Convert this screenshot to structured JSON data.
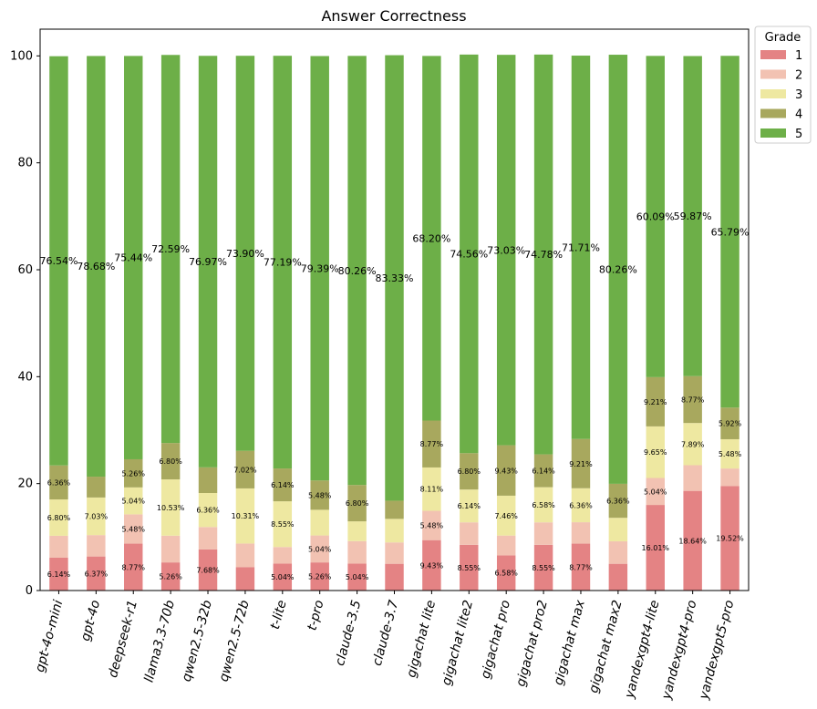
{
  "chart_data": {
    "type": "bar",
    "stacked": true,
    "title": "Answer Correctness",
    "xlabel": "",
    "ylabel": "",
    "ylim": [
      0,
      105
    ],
    "yticks": [
      0,
      20,
      40,
      60,
      80,
      100
    ],
    "grid": false,
    "legend": {
      "title": "Grade",
      "placement": "outside-top-right"
    },
    "categories": [
      "gpt-4o-mini",
      "gpt-4o",
      "deepseek-r1",
      "llama3.3-70b",
      "qwen2.5-32b",
      "qwen2.5-72b",
      "t-lite",
      "t-pro",
      "claude-3.5",
      "claude-3.7",
      "gigachat lite",
      "gigachat lite2",
      "gigachat pro",
      "gigachat pro2",
      "gigachat max",
      "gigachat max2",
      "yandexgpt4-lite",
      "yandexgpt4-pro",
      "yandexgpt5-pro"
    ],
    "series": [
      {
        "name": "1",
        "color": "#e48384",
        "values": [
          6.14,
          6.37,
          8.77,
          5.26,
          7.68,
          4.39,
          5.04,
          5.26,
          5.04,
          5.0,
          9.43,
          8.55,
          6.58,
          8.55,
          8.77,
          5.0,
          16.01,
          18.64,
          19.52
        ],
        "labels": [
          "6.14%",
          "6.37%",
          "8.77%",
          "5.26%",
          "7.68%",
          "",
          "5.04%",
          "5.26%",
          "5.04%",
          "",
          "9.43%",
          "8.55%",
          "6.58%",
          "8.55%",
          "8.77%",
          "",
          "16.01%",
          "18.64%",
          "19.52%"
        ]
      },
      {
        "name": "2",
        "color": "#f2c2b2",
        "values": [
          4.1,
          4.0,
          5.48,
          5.0,
          4.2,
          4.4,
          3.1,
          5.04,
          4.2,
          4.0,
          5.48,
          4.2,
          3.7,
          4.2,
          4.0,
          4.2,
          5.04,
          4.8,
          3.3
        ],
        "labels": [
          "",
          "",
          "5.48%",
          "",
          "",
          "",
          "",
          "5.04%",
          "",
          "",
          "5.48%",
          "",
          "",
          "",
          "",
          "",
          "5.04%",
          "",
          ""
        ]
      },
      {
        "name": "3",
        "color": "#eee8a1",
        "values": [
          6.8,
          7.03,
          5.04,
          10.53,
          6.36,
          10.31,
          8.55,
          4.8,
          3.7,
          4.4,
          8.11,
          6.14,
          7.46,
          6.58,
          6.36,
          4.4,
          9.65,
          7.89,
          5.48
        ],
        "labels": [
          "6.80%",
          "7.03%",
          "5.04%",
          "10.53%",
          "6.36%",
          "10.31%",
          "8.55%",
          "",
          "",
          "",
          "8.11%",
          "6.14%",
          "7.46%",
          "6.58%",
          "6.36%",
          "",
          "9.65%",
          "7.89%",
          "5.48%"
        ]
      },
      {
        "name": "4",
        "color": "#a8a85e",
        "values": [
          6.36,
          3.9,
          5.26,
          6.8,
          4.8,
          7.02,
          6.14,
          5.48,
          6.8,
          3.4,
          8.77,
          6.8,
          9.43,
          6.14,
          9.21,
          6.36,
          9.21,
          8.77,
          5.92
        ],
        "labels": [
          "6.36%",
          "",
          "5.26%",
          "6.80%",
          "",
          "7.02%",
          "6.14%",
          "5.48%",
          "6.80%",
          "",
          "8.77%",
          "6.80%",
          "9.43%",
          "6.14%",
          "9.21%",
          "6.36%",
          "9.21%",
          "8.77%",
          "5.92%"
        ]
      },
      {
        "name": "5",
        "color": "#6daf48",
        "values": [
          76.54,
          78.68,
          75.44,
          72.59,
          76.97,
          73.9,
          77.19,
          79.39,
          80.26,
          83.33,
          68.2,
          74.56,
          73.03,
          74.78,
          71.71,
          80.26,
          60.09,
          59.87,
          65.79
        ],
        "labels": [
          "76.54%",
          "78.68%",
          "75.44%",
          "72.59%",
          "76.97%",
          "73.90%",
          "77.19%",
          "79.39%",
          "80.26%",
          "83.33%",
          "68.20%",
          "74.56%",
          "73.03%",
          "74.78%",
          "71.71%",
          "80.26%",
          "60.09%",
          "59.87%",
          "65.79%"
        ]
      }
    ]
  }
}
